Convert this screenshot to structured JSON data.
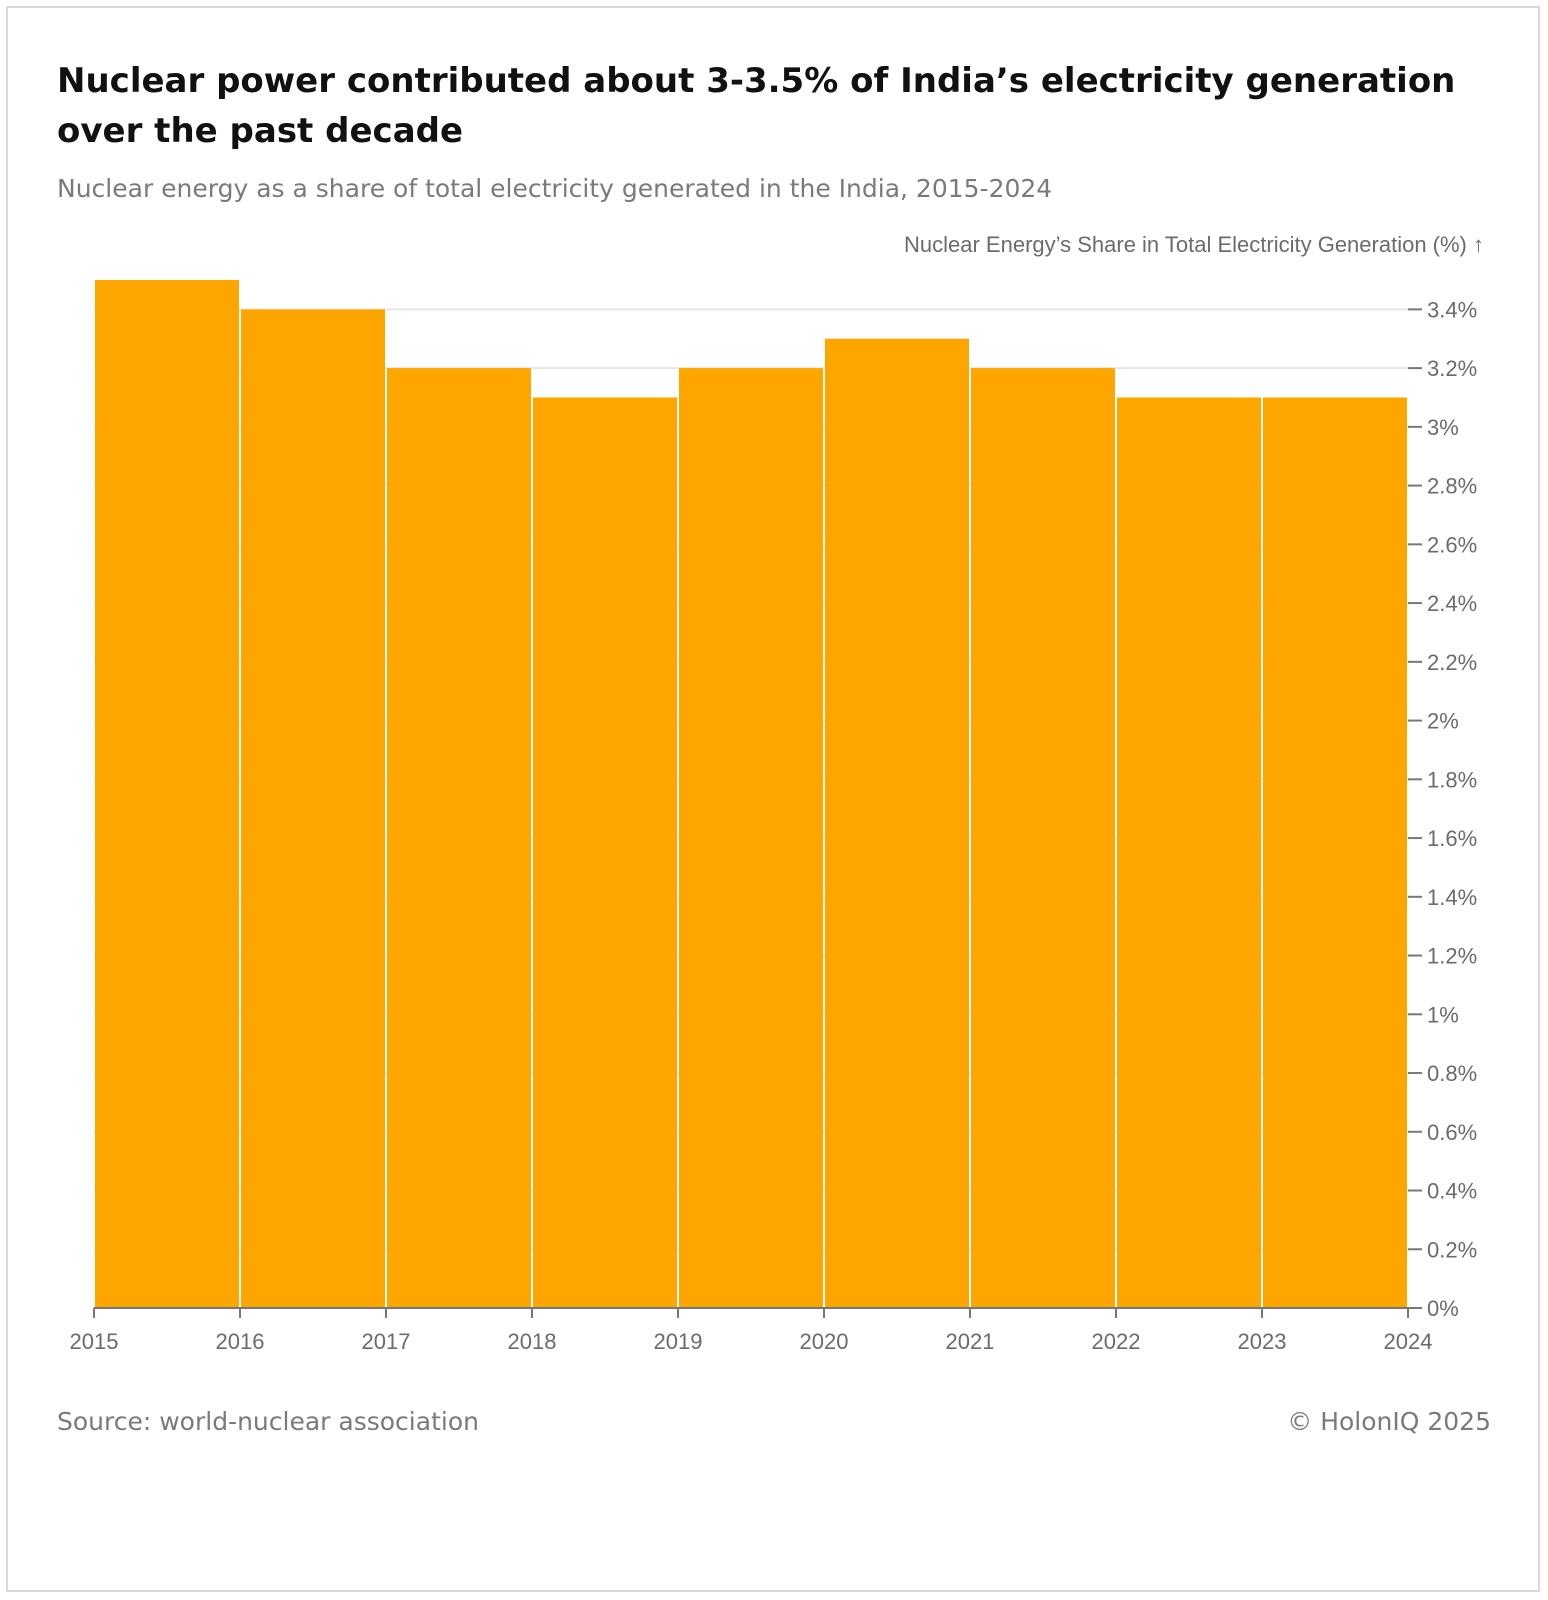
{
  "title": "Nuclear power contributed about 3-3.5% of India’s electricity generation over the past decade",
  "subtitle": "Nuclear energy as a share of total electricity generated in the India, 2015-2024",
  "source": "Source: world-nuclear association",
  "copyright": "© HolonIQ 2025",
  "colors": {
    "bar": "#ffa500",
    "grid": "#e6e6e6",
    "axis": "#777777",
    "text": "#6b6b6b"
  },
  "chart_data": {
    "type": "bar",
    "title": "Nuclear power contributed about 3-3.5% of India’s electricity generation over the past decade",
    "subtitle": "Nuclear energy as a share of total electricity generated in the India, 2015-2024",
    "ylabel": "Nuclear Energy’s Share in Total Electricity Generation (%) ↑",
    "xlabel": "",
    "y_axis_side": "right",
    "grid": true,
    "ylim": [
      0,
      3.5
    ],
    "yticks": [
      0,
      0.2,
      0.4,
      0.6,
      0.8,
      1.0,
      1.2,
      1.4,
      1.6,
      1.8,
      2.0,
      2.2,
      2.4,
      2.6,
      2.8,
      3.0,
      3.2,
      3.4
    ],
    "ytick_labels": [
      "0%",
      "0.2%",
      "0.4%",
      "0.6%",
      "0.8%",
      "1%",
      "1.2%",
      "1.4%",
      "1.6%",
      "1.8%",
      "2%",
      "2.2%",
      "2.4%",
      "2.6%",
      "2.8%",
      "3%",
      "3.2%",
      "3.4%"
    ],
    "xticks": [
      "2015",
      "2016",
      "2017",
      "2018",
      "2019",
      "2020",
      "2021",
      "2022",
      "2023",
      "2024"
    ],
    "bins": [
      {
        "from": "2015",
        "to": "2016",
        "value": 3.5
      },
      {
        "from": "2016",
        "to": "2017",
        "value": 3.4
      },
      {
        "from": "2017",
        "to": "2018",
        "value": 3.2
      },
      {
        "from": "2018",
        "to": "2019",
        "value": 3.1
      },
      {
        "from": "2019",
        "to": "2020",
        "value": 3.2
      },
      {
        "from": "2020",
        "to": "2021",
        "value": 3.3
      },
      {
        "from": "2021",
        "to": "2022",
        "value": 3.2
      },
      {
        "from": "2022",
        "to": "2023",
        "value": 3.1
      },
      {
        "from": "2023",
        "to": "2024",
        "value": 3.1
      }
    ]
  }
}
